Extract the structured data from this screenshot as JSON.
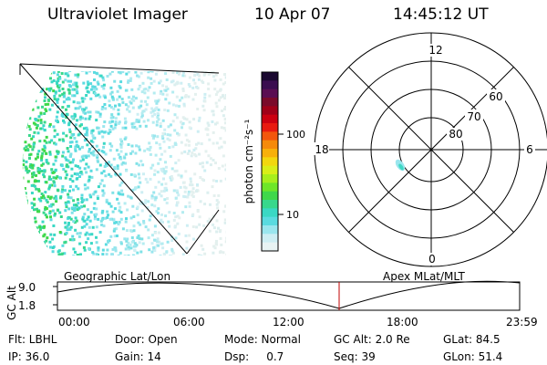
{
  "header": {
    "title": "Ultraviolet Imager",
    "date": "10 Apr 07",
    "time": "14:45:12 UT"
  },
  "colorbar": {
    "unit_label": "photon cm⁻²s⁻¹",
    "ticks": [
      "100",
      "10"
    ],
    "colors": [
      "#1a0830",
      "#3a0d4f",
      "#5a0e52",
      "#7a0a2a",
      "#a00018",
      "#cc0010",
      "#e81a10",
      "#f2560c",
      "#f58a0a",
      "#f7b00a",
      "#f2d70e",
      "#d9ee18",
      "#a8ee1c",
      "#6ee628",
      "#3fd84a",
      "#38d88c",
      "#3ad8c4",
      "#5adbe0",
      "#9ae6ee",
      "#cdeef3",
      "#e8f3f3"
    ]
  },
  "polar": {
    "labels": [
      "12",
      "18",
      "6",
      "0",
      "80",
      "70",
      "60"
    ],
    "coord_label": "Apex MLat/MLT"
  },
  "geo": {
    "coord_label": "Geographic Lat/Lon"
  },
  "altitude_plot": {
    "ylabel": "GC Alt",
    "yticks": [
      "9.0",
      "1.8"
    ],
    "xticks": [
      "00:00",
      "06:00",
      "12:00",
      "18:00",
      "23:59"
    ]
  },
  "status": {
    "row1": [
      "Flt: LBHL",
      "Door: Open",
      "Mode: Normal",
      "GC Alt: 2.0 Re",
      "GLat:  84.5"
    ],
    "row2": [
      "IP: 36.0",
      "Gain: 14",
      "Dsp:     0.7",
      "Seq: 39",
      "GLon:  51.4"
    ]
  },
  "colors": {
    "foreground": "#000000",
    "marker": "#c00000"
  }
}
